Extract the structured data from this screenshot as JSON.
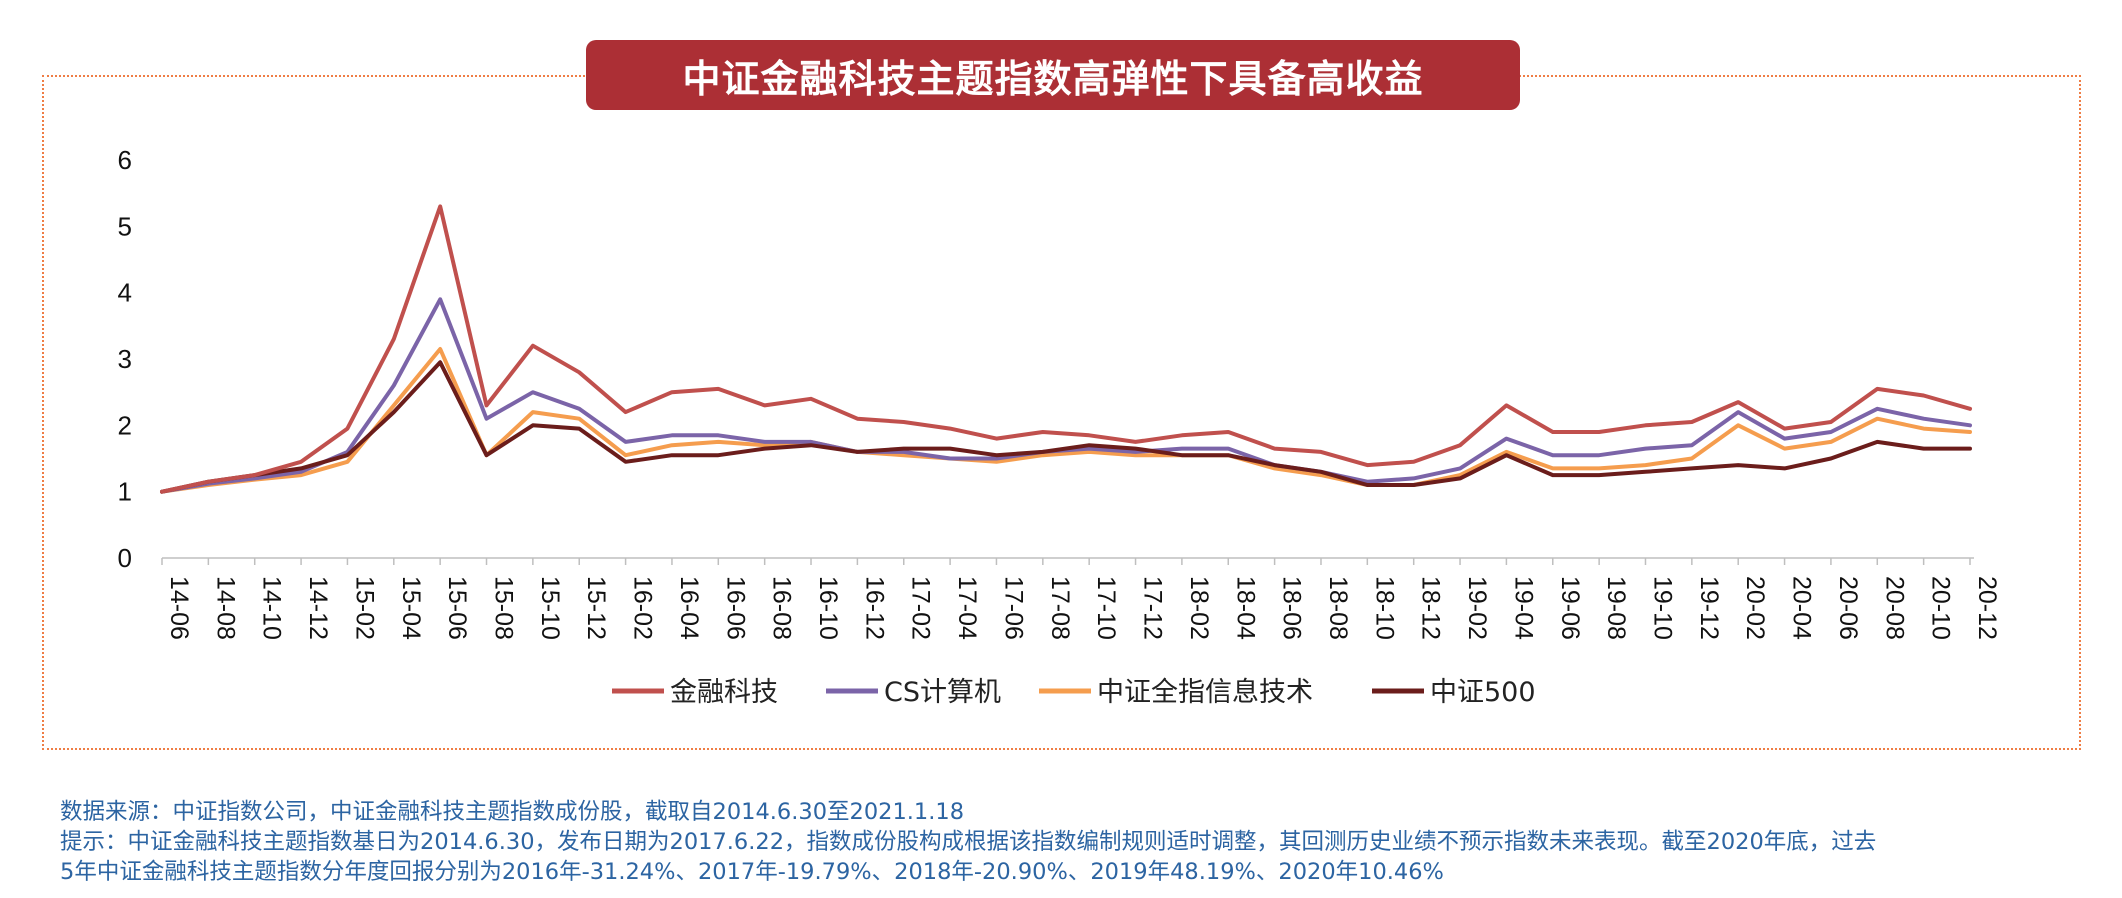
{
  "colors": {
    "jinrongkeji": "#c0504d",
    "cs_jisuanji": "#7b64a8",
    "zhongzheng_xinxi": "#f59d4e",
    "zhongzheng500": "#6b1d1b",
    "title_bg": "#ac2f35",
    "frame": "#ef7d45",
    "note_text": "#2c64a2"
  },
  "chart_data": {
    "type": "line",
    "title": "中证金融科技主题指数高弹性下具备高收益",
    "xlabel": "",
    "ylabel": "",
    "ylim": [
      0,
      6
    ],
    "yticks": [
      "0",
      "1",
      "2",
      "3",
      "4",
      "5",
      "6"
    ],
    "categories": [
      "14-06",
      "14-08",
      "14-10",
      "14-12",
      "15-02",
      "15-04",
      "15-06",
      "15-08",
      "15-10",
      "15-12",
      "16-02",
      "16-04",
      "16-06",
      "16-08",
      "16-10",
      "16-12",
      "17-02",
      "17-04",
      "17-06",
      "17-08",
      "17-10",
      "17-12",
      "18-02",
      "18-04",
      "18-06",
      "18-08",
      "18-10",
      "18-12",
      "19-02",
      "19-04",
      "19-06",
      "19-08",
      "19-10",
      "19-12",
      "20-02",
      "20-04",
      "20-06",
      "20-08",
      "20-10",
      "20-12"
    ],
    "legend": [
      "金融科技",
      "CS计算机",
      "中证全指信息技术",
      "中证500"
    ],
    "legend_position": "bottom",
    "x_index": [
      0,
      1,
      2,
      3,
      4,
      5,
      6,
      7,
      8,
      9,
      10,
      11,
      12,
      13,
      14,
      15,
      16,
      17,
      18,
      19,
      20,
      21,
      22,
      23,
      24,
      25,
      26,
      27,
      28,
      29,
      30,
      31,
      32,
      33,
      34,
      35,
      36,
      37,
      38,
      39
    ],
    "series": [
      {
        "name": "金融科技",
        "values": [
          1.0,
          1.15,
          1.25,
          1.45,
          1.95,
          3.3,
          5.3,
          2.3,
          3.2,
          2.8,
          2.2,
          2.5,
          2.55,
          2.3,
          2.4,
          2.1,
          2.05,
          1.95,
          1.8,
          1.9,
          1.85,
          1.75,
          1.85,
          1.9,
          1.65,
          1.6,
          1.4,
          1.45,
          1.7,
          2.3,
          1.9,
          1.9,
          2.0,
          2.05,
          2.35,
          1.95,
          2.05,
          2.55,
          2.45,
          2.25
        ]
      },
      {
        "name": "CS计算机",
        "values": [
          1.0,
          1.12,
          1.2,
          1.3,
          1.6,
          2.6,
          3.9,
          2.1,
          2.5,
          2.25,
          1.75,
          1.85,
          1.85,
          1.75,
          1.75,
          1.6,
          1.6,
          1.5,
          1.5,
          1.6,
          1.65,
          1.6,
          1.65,
          1.65,
          1.4,
          1.3,
          1.15,
          1.2,
          1.35,
          1.8,
          1.55,
          1.55,
          1.65,
          1.7,
          2.2,
          1.8,
          1.9,
          2.25,
          2.1,
          2.0
        ]
      },
      {
        "name": "中证全指信息技术",
        "values": [
          1.0,
          1.1,
          1.18,
          1.25,
          1.45,
          2.3,
          3.15,
          1.55,
          2.2,
          2.1,
          1.55,
          1.7,
          1.75,
          1.7,
          1.75,
          1.6,
          1.55,
          1.5,
          1.45,
          1.55,
          1.6,
          1.55,
          1.55,
          1.55,
          1.35,
          1.25,
          1.1,
          1.1,
          1.25,
          1.6,
          1.35,
          1.35,
          1.4,
          1.5,
          2.0,
          1.65,
          1.75,
          2.1,
          1.95,
          1.9
        ]
      },
      {
        "name": "中证500",
        "values": [
          1.0,
          1.15,
          1.25,
          1.35,
          1.55,
          2.2,
          2.95,
          1.55,
          2.0,
          1.95,
          1.45,
          1.55,
          1.55,
          1.65,
          1.7,
          1.6,
          1.65,
          1.65,
          1.55,
          1.6,
          1.7,
          1.65,
          1.55,
          1.55,
          1.4,
          1.3,
          1.1,
          1.1,
          1.2,
          1.55,
          1.25,
          1.25,
          1.3,
          1.35,
          1.4,
          1.35,
          1.5,
          1.75,
          1.65,
          1.65
        ]
      }
    ]
  },
  "notes": {
    "line1": "数据来源：中证指数公司，中证金融科技主题指数成份股，截取自2014.6.30至2021.1.18",
    "line2": "提示：中证金融科技主题指数基日为2014.6.30，发布日期为2017.6.22，指数成份股构成根据该指数编制规则适时调整，其回测历史业绩不预示指数未来表现。截至2020年底，过去",
    "line3": "5年中证金融科技主题指数分年度回报分别为2016年-31.24%、2017年-19.79%、2018年-20.90%、2019年48.19%、2020年10.46%"
  }
}
